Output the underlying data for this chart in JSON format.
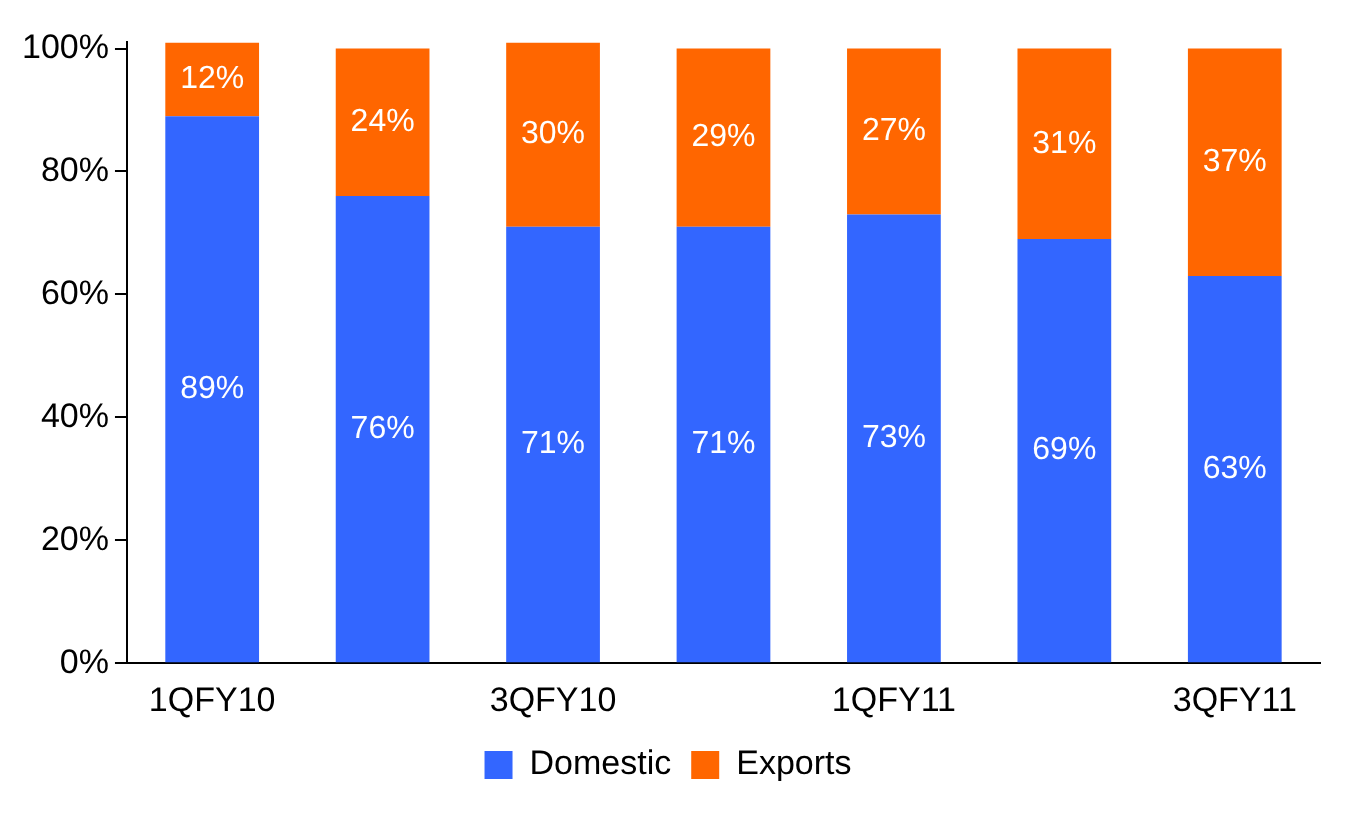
{
  "chart_data": {
    "type": "bar",
    "stacked": true,
    "categories": [
      "1QFY10",
      null,
      "3QFY10",
      null,
      "1QFY11",
      null,
      "3QFY11"
    ],
    "series": [
      {
        "name": "Domestic",
        "color": "#3366ff",
        "values": [
          89,
          76,
          71,
          71,
          73,
          69,
          63
        ],
        "value_labels": [
          "89%",
          "76%",
          "71%",
          "71%",
          "73%",
          "69%",
          "63%"
        ]
      },
      {
        "name": "Exports",
        "color": "#ff6600",
        "values": [
          12,
          24,
          30,
          29,
          27,
          31,
          37
        ],
        "value_labels": [
          "12%",
          "24%",
          "30%",
          "29%",
          "27%",
          "31%",
          "37%"
        ]
      }
    ],
    "ylim": [
      0,
      101
    ],
    "yticks": [
      {
        "value": 0,
        "label": "0%"
      },
      {
        "value": 20,
        "label": "20%"
      },
      {
        "value": 40,
        "label": "40%"
      },
      {
        "value": 60,
        "label": "60%"
      },
      {
        "value": 80,
        "label": "80%"
      },
      {
        "value": 100,
        "label": "100%"
      }
    ],
    "grid": false,
    "legend": "bottom"
  }
}
